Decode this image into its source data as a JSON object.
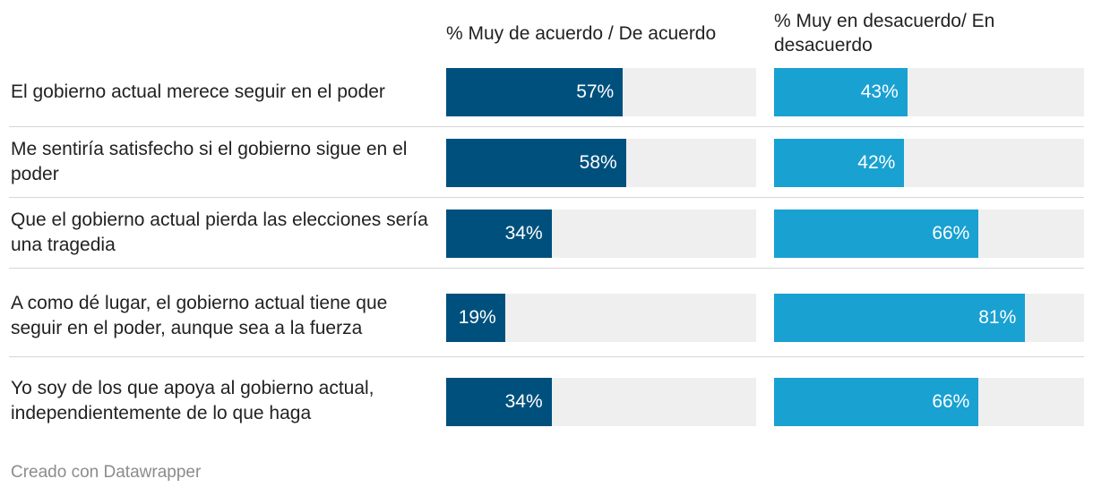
{
  "chart_data": {
    "type": "bar",
    "title": "",
    "categories": [
      "El gobierno actual merece seguir en el poder",
      "Me sentiría satisfecho si el gobierno sigue en el poder",
      "Que el gobierno actual pierda las elecciones sería una tragedia",
      "A como dé lugar, el gobierno actual tiene que seguir en el poder, aunque sea a la fuerza",
      "Yo soy de los que apoya al gobierno actual, independientemente de lo que haga"
    ],
    "series": [
      {
        "name": "% Muy de acuerdo / De acuerdo",
        "color": "#00507d",
        "values": [
          57,
          58,
          34,
          19,
          34
        ],
        "labels": [
          "57%",
          "58%",
          "34%",
          "19%",
          "34%"
        ]
      },
      {
        "name": "% Muy en desacuerdo/ En desacuerdo",
        "color": "#19a1d2",
        "values": [
          43,
          42,
          66,
          81,
          66
        ],
        "labels": [
          "43%",
          "42%",
          "66%",
          "81%",
          "66%"
        ]
      }
    ],
    "ylim": [
      0,
      100
    ],
    "track_color": "#efefef",
    "grid": false,
    "legend": "column headers"
  },
  "footer": "Creado con Datawrapper"
}
